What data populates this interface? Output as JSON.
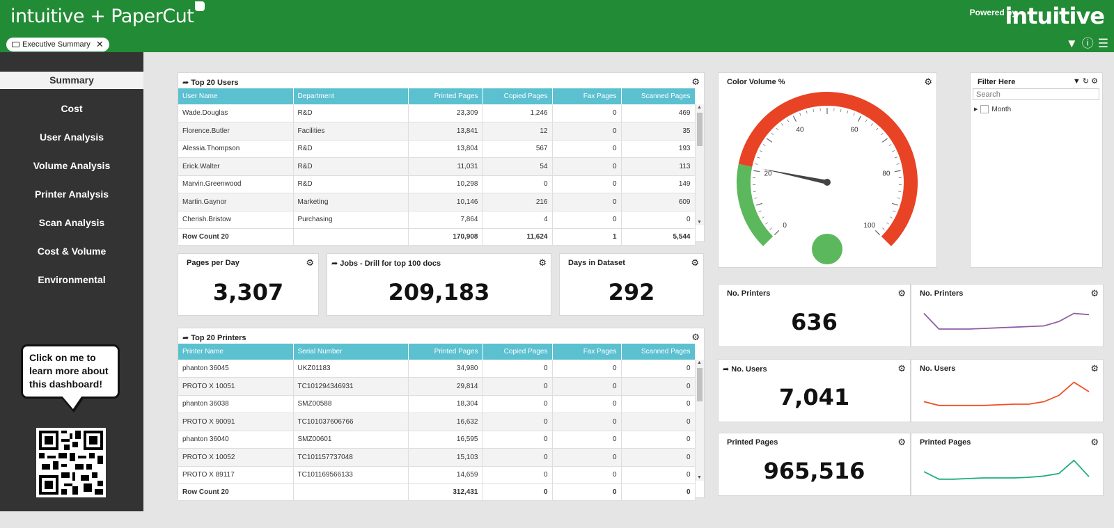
{
  "header": {
    "brand": "intuitive + PaperCut",
    "powered_by": "Powered by",
    "brand_right": "intuitive",
    "tab": "Executive Summary"
  },
  "sidebar": {
    "items": [
      "Summary",
      "Cost",
      "User Analysis",
      "Volume Analysis",
      "Printer Analysis",
      "Scan Analysis",
      "Cost & Volume",
      "Environmental"
    ],
    "bubble": "Click on me to learn more about this dashboard!"
  },
  "users_table": {
    "title": "Top 20 Users",
    "columns": [
      "User Name",
      "Department",
      "Printed Pages",
      "Copied Pages",
      "Fax Pages",
      "Scanned Pages"
    ],
    "rows": [
      [
        "Wade.Douglas",
        "R&D",
        "23,309",
        "1,246",
        "0",
        "469"
      ],
      [
        "Florence.Butler",
        "Facilities",
        "13,841",
        "12",
        "0",
        "35"
      ],
      [
        "Alessia.Thompson",
        "R&D",
        "13,804",
        "567",
        "0",
        "193"
      ],
      [
        "Erick.Walter",
        "R&D",
        "11,031",
        "54",
        "0",
        "113"
      ],
      [
        "Marvin.Greenwood",
        "R&D",
        "10,298",
        "0",
        "0",
        "149"
      ],
      [
        "Martin.Gaynor",
        "Marketing",
        "10,146",
        "216",
        "0",
        "609"
      ],
      [
        "Cherish.Bristow",
        "Purchasing",
        "7,864",
        "4",
        "0",
        "0"
      ]
    ],
    "footer": [
      "Row Count 20",
      "",
      "170,908",
      "11,624",
      "1",
      "5,544"
    ]
  },
  "printers_table": {
    "title": "Top 20 Printers",
    "columns": [
      "Printer Name",
      "Serial Number",
      "Printed Pages",
      "Copied Pages",
      "Fax Pages",
      "Scanned Pages"
    ],
    "rows": [
      [
        "phanton 36045",
        "UKZ01183",
        "34,980",
        "0",
        "0",
        "0"
      ],
      [
        "PROTO X 10051",
        "TC101294346931",
        "29,814",
        "0",
        "0",
        "0"
      ],
      [
        "phanton 36038",
        "SMZ00588",
        "18,304",
        "0",
        "0",
        "0"
      ],
      [
        "PROTO X 90091",
        "TC101037606766",
        "16,632",
        "0",
        "0",
        "0"
      ],
      [
        "phanton 36040",
        "SMZ00601",
        "16,595",
        "0",
        "0",
        "0"
      ],
      [
        "PROTO X 10052",
        "TC101157737048",
        "15,103",
        "0",
        "0",
        "0"
      ],
      [
        "PROTO X 89117",
        "TC101169566133",
        "14,659",
        "0",
        "0",
        "0"
      ]
    ],
    "footer": [
      "Row Count 20",
      "",
      "312,431",
      "0",
      "0",
      "0"
    ]
  },
  "kpis": {
    "pages_per_day": {
      "title": "Pages per Day",
      "value": "3,307"
    },
    "jobs": {
      "title": "Jobs - Drill for top 100 docs",
      "value": "209,183"
    },
    "days": {
      "title": "Days in Dataset",
      "value": "292"
    },
    "printers": {
      "title": "No. Printers",
      "value": "636"
    },
    "users": {
      "title": "No. Users",
      "value": "7,041"
    },
    "printed": {
      "title": "Printed Pages",
      "value": "965,516"
    }
  },
  "gauge": {
    "title": "Color Volume %",
    "ticks": [
      "0",
      "20",
      "40",
      "60",
      "80",
      "100"
    ],
    "value": 21,
    "green": "#5cb85c",
    "red": "#e84325"
  },
  "sparks": {
    "printers": {
      "title": "No. Printers",
      "color": "#8e5ea2",
      "values": [
        45,
        20,
        20,
        20,
        21,
        22,
        23,
        24,
        25,
        32,
        45,
        43
      ]
    },
    "users": {
      "title": "No. Users",
      "color": "#f04e23",
      "values": [
        24,
        18,
        18,
        18,
        18,
        19,
        20,
        20,
        24,
        34,
        55,
        40
      ]
    },
    "printed": {
      "title": "Printed Pages",
      "color": "#1fae7a",
      "values": [
        30,
        18,
        18,
        19,
        20,
        20,
        20,
        21,
        23,
        27,
        48,
        22
      ]
    }
  },
  "filter": {
    "title": "Filter Here",
    "search_placeholder": "Search",
    "tree_item": "Month"
  }
}
